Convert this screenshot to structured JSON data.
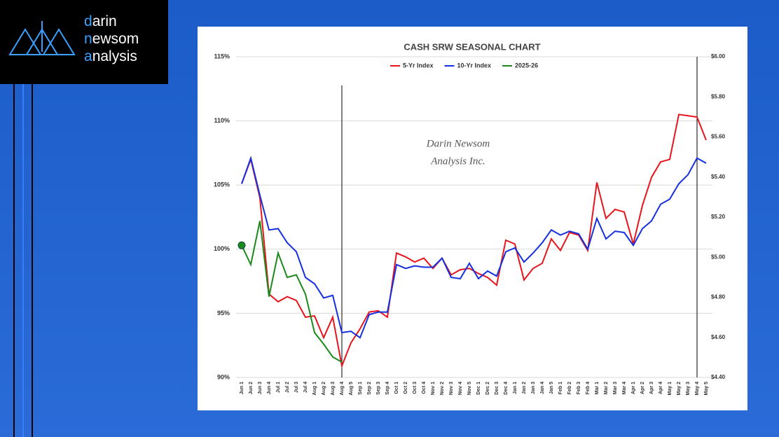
{
  "logo": [
    "darin",
    "newsom",
    "analysis"
  ],
  "chart_data": {
    "type": "line",
    "title": "CASH SRW SEASONAL CHART",
    "annotations": [
      "Darin Newsom",
      "Analysis Inc."
    ],
    "categories": [
      "Jun 1",
      "Jun 2",
      "Jun 3",
      "Jun 4",
      "Jul 1",
      "Jul 2",
      "Jul 3",
      "Jul 4",
      "Aug 1",
      "Aug 2",
      "Aug 3",
      "Aug 4",
      "Aug 5",
      "Sep 1",
      "Sep 2",
      "Sep 3",
      "Sep 4",
      "Oct 1",
      "Oct 2",
      "Oct 3",
      "Oct 4",
      "Nov 1",
      "Nov 2",
      "Nov 3",
      "Nov 4",
      "Nov 5",
      "Dec 1",
      "Dec 2",
      "Dec 3",
      "Dec 4",
      "Jan 1",
      "Jan 2",
      "Jan 3",
      "Jan 4",
      "Jan 5",
      "Feb 1",
      "Feb 2",
      "Feb 3",
      "Feb 4",
      "Mar 1",
      "Mar 2",
      "Mar 3",
      "Mar 4",
      "Apr 1",
      "Apr 2",
      "Apr 3",
      "Apr 4",
      "May 1",
      "May 2",
      "May 3",
      "May 4",
      "May 5"
    ],
    "series": [
      {
        "name": "5-Yr Index",
        "color": "#e8141c",
        "values": [
          105.1,
          107.0,
          104.0,
          96.5,
          95.9,
          96.3,
          96.0,
          94.7,
          94.8,
          93.1,
          94.7,
          90.9,
          92.7,
          93.8,
          95.1,
          95.2,
          94.7,
          99.7,
          99.4,
          99.0,
          99.3,
          98.5,
          99.3,
          98.0,
          98.4,
          98.5,
          98.1,
          97.8,
          97.2,
          100.7,
          100.4,
          97.6,
          98.5,
          98.9,
          100.8,
          99.9,
          101.3,
          101.1,
          99.9,
          105.2,
          102.4,
          103.1,
          102.9,
          100.4,
          103.4,
          105.6,
          106.8,
          107.0,
          110.5,
          110.4,
          110.3,
          108.5
        ]
      },
      {
        "name": "10-Yr Index",
        "color": "#1430e0",
        "values": [
          105.1,
          107.1,
          104.2,
          101.5,
          101.6,
          100.5,
          99.8,
          97.8,
          97.3,
          96.2,
          96.4,
          93.5,
          93.6,
          93.1,
          94.9,
          95.1,
          95.1,
          98.8,
          98.5,
          98.7,
          98.6,
          98.6,
          99.3,
          97.8,
          97.7,
          98.9,
          97.7,
          98.3,
          97.9,
          99.8,
          100.1,
          99.0,
          99.7,
          100.5,
          101.5,
          101.1,
          101.4,
          101.2,
          100.0,
          102.4,
          100.8,
          101.4,
          101.3,
          100.3,
          101.6,
          102.2,
          103.5,
          103.9,
          105.1,
          105.8,
          107.1,
          106.7
        ]
      },
      {
        "name": "2025-26",
        "color": "#1a8a1a",
        "values": [
          100.3,
          98.8,
          102.2,
          96.3,
          99.7,
          97.8,
          98.0,
          96.5,
          93.5,
          92.6,
          91.6,
          91.2,
          null,
          null,
          null,
          null,
          null,
          null,
          null,
          null,
          null,
          null,
          null,
          null,
          null,
          null,
          null,
          null,
          null,
          null,
          null,
          null,
          null,
          null,
          null,
          null,
          null,
          null,
          null,
          null,
          null,
          null,
          null,
          null,
          null,
          null,
          null,
          null,
          null,
          null,
          null,
          null
        ]
      }
    ],
    "ylim": [
      90,
      115
    ],
    "yticks": [
      {
        "value": 90,
        "label": "90%"
      },
      {
        "value": 95,
        "label": "95%"
      },
      {
        "value": 100,
        "label": "100%"
      },
      {
        "value": 105,
        "label": "105%"
      },
      {
        "value": 110,
        "label": "110%"
      },
      {
        "value": 115,
        "label": "115%"
      }
    ],
    "y2lim": [
      4.4,
      6.0
    ],
    "y2ticks": [
      {
        "value": 4.4,
        "label": "$4.40"
      },
      {
        "value": 4.6,
        "label": "$4.60"
      },
      {
        "value": 4.8,
        "label": "$4.80"
      },
      {
        "value": 5.0,
        "label": "$5.00"
      },
      {
        "value": 5.2,
        "label": "$5.20"
      },
      {
        "value": 5.4,
        "label": "$5.40"
      },
      {
        "value": 5.6,
        "label": "$5.60"
      },
      {
        "value": 5.8,
        "label": "$5.80"
      },
      {
        "value": 6.0,
        "label": "$6.00"
      }
    ],
    "grid": true,
    "legend": "top"
  }
}
